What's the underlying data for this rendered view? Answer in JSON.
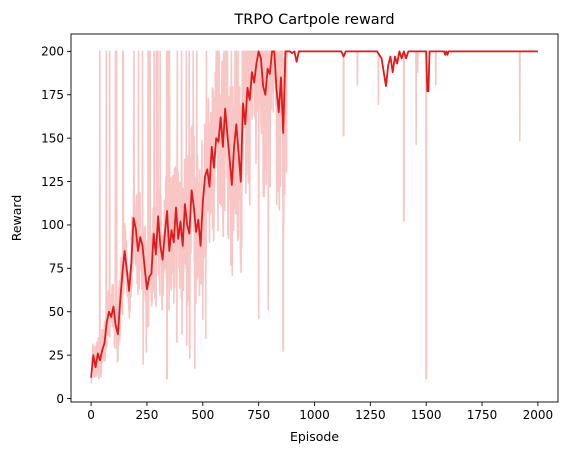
{
  "chart_data": {
    "type": "line",
    "title": "TRPO Cartpole reward",
    "xlabel": "Episode",
    "ylabel": "Reward",
    "xlim": [
      -90,
      2090
    ],
    "ylim": [
      -2,
      210
    ],
    "grid": false,
    "legend": "none",
    "x_ticks": [
      0,
      250,
      500,
      750,
      1000,
      1250,
      1500,
      1750,
      2000
    ],
    "y_ticks": [
      0,
      25,
      50,
      75,
      100,
      125,
      150,
      175,
      200
    ],
    "colors": {
      "smoothed": "#e31a1c",
      "raw": "#f7c6c5",
      "axes": "#000000"
    },
    "series": [
      {
        "role": "smoothed",
        "x": [
          0,
          10,
          20,
          30,
          40,
          50,
          60,
          70,
          80,
          90,
          100,
          110,
          120,
          130,
          140,
          150,
          160,
          170,
          180,
          190,
          200,
          210,
          220,
          230,
          240,
          250,
          260,
          270,
          280,
          290,
          300,
          310,
          320,
          330,
          340,
          350,
          360,
          370,
          380,
          390,
          400,
          410,
          420,
          430,
          440,
          450,
          460,
          470,
          480,
          490,
          500,
          510,
          520,
          530,
          540,
          550,
          560,
          570,
          580,
          590,
          600,
          610,
          620,
          630,
          640,
          650,
          660,
          670,
          680,
          690,
          700,
          710,
          720,
          730,
          740,
          750,
          760,
          770,
          780,
          790,
          800,
          810,
          820,
          830,
          840,
          850,
          860,
          870,
          880,
          890,
          900,
          910,
          920,
          930,
          940,
          950,
          1000,
          1050,
          1100,
          1120,
          1130,
          1140,
          1150,
          1200,
          1250,
          1280,
          1300,
          1310,
          1320,
          1330,
          1340,
          1350,
          1360,
          1370,
          1380,
          1390,
          1400,
          1410,
          1420,
          1430,
          1440,
          1450,
          1500,
          1505,
          1510,
          1515,
          1520,
          1550,
          1580,
          1585,
          1590,
          1595,
          1600,
          1650,
          1700,
          1800,
          1900,
          2000
        ],
        "y": [
          12,
          25,
          18,
          26,
          22,
          28,
          32,
          44,
          50,
          47,
          53,
          42,
          37,
          56,
          72,
          85,
          74,
          62,
          78,
          104,
          98,
          85,
          93,
          88,
          75,
          63,
          70,
          72,
          95,
          83,
          105,
          88,
          80,
          95,
          108,
          85,
          97,
          90,
          110,
          92,
          102,
          88,
          112,
          100,
          95,
          120,
          110,
          96,
          103,
          88,
          113,
          128,
          132,
          122,
          145,
          133,
          150,
          148,
          162,
          145,
          167,
          152,
          138,
          123,
          145,
          158,
          142,
          125,
          170,
          158,
          179,
          172,
          188,
          182,
          193,
          200,
          196,
          180,
          175,
          190,
          187,
          200,
          200,
          178,
          165,
          185,
          153,
          200,
          200,
          200,
          199,
          200,
          194,
          200,
          200,
          200,
          200,
          200,
          200,
          200,
          197,
          200,
          200,
          200,
          200,
          200,
          196,
          188,
          180,
          192,
          197,
          188,
          197,
          193,
          200,
          196,
          200,
          196,
          200,
          200,
          200,
          200,
          200,
          177,
          177,
          200,
          200,
          200,
          200,
          198,
          200,
          198,
          200,
          200,
          200,
          200,
          200,
          200
        ]
      }
    ]
  }
}
